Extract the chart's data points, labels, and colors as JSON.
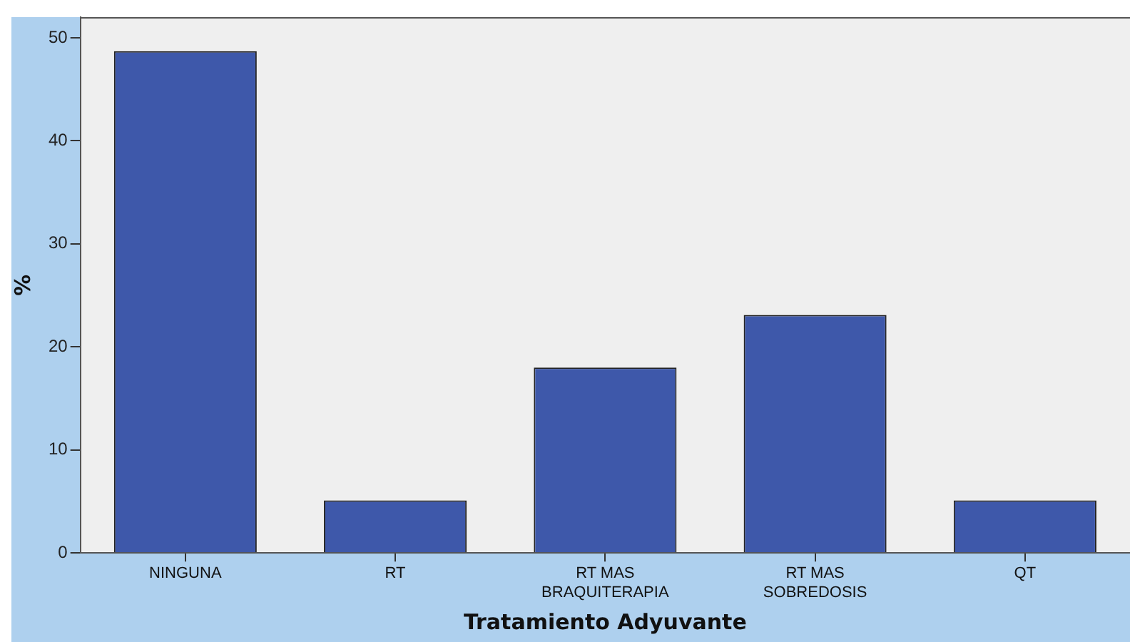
{
  "chart_data": {
    "type": "bar",
    "xlabel": "Tratamiento Adyuvante",
    "ylabel": "%",
    "categories": [
      "NINGUNA",
      "RT",
      "RT MAS BRAQUITERAPIA",
      "RT MAS SOBREDOSIS",
      "QT"
    ],
    "values": [
      48.7,
      5.1,
      18.0,
      23.1,
      5.1
    ],
    "color": "#3e58aa",
    "ylim": [
      0,
      52
    ],
    "yticks": [
      0,
      10,
      20,
      30,
      40,
      50
    ],
    "grid": false,
    "legend": false
  }
}
